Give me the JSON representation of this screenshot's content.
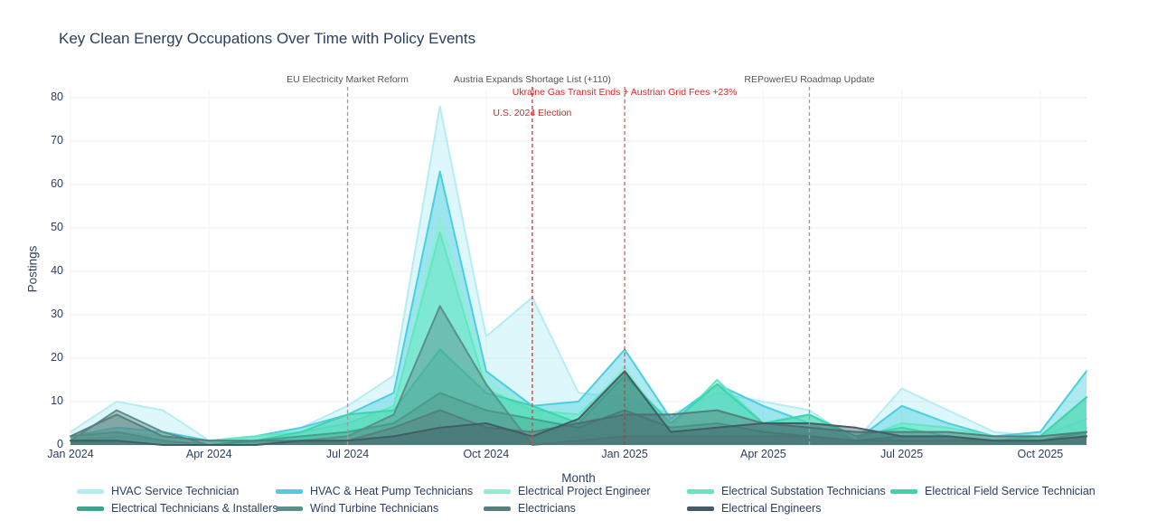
{
  "title": "Key Clean Energy Occupations Over Time with Policy Events",
  "chart_data": {
    "type": "area",
    "title": "Key Clean Energy Occupations Over Time with Policy Events",
    "xlabel": "Month",
    "ylabel": "Postings",
    "ylim": [
      0,
      80
    ],
    "yticks": [
      0,
      10,
      20,
      30,
      40,
      50,
      60,
      70,
      80
    ],
    "xticks": [
      "Jan 2024",
      "Apr 2024",
      "Jul 2024",
      "Oct 2024",
      "Jan 2025",
      "Apr 2025",
      "Jul 2025",
      "Oct 2025"
    ],
    "grid": true,
    "legend_position": "bottom",
    "x": [
      "Jan 2024",
      "Feb 2024",
      "Mar 2024",
      "Apr 2024",
      "May 2024",
      "Jun 2024",
      "Jul 2024",
      "Aug 2024",
      "Sep 2024",
      "Oct 2024",
      "Nov 2024",
      "Dec 2024",
      "Jan 2025",
      "Feb 2025",
      "Mar 2025",
      "Apr 2025",
      "May 2025",
      "Jun 2025",
      "Jul 2025",
      "Aug 2025",
      "Sep 2025",
      "Oct 2025",
      "Nov 2025"
    ],
    "series": [
      {
        "name": "HVAC Service Technician",
        "color": "#b5edf3",
        "values": [
          3,
          10,
          8,
          1,
          2,
          4,
          9,
          16,
          78,
          25,
          34,
          12,
          11,
          7,
          12,
          10,
          8,
          1,
          13,
          8,
          3,
          2,
          6
        ]
      },
      {
        "name": "HVAC & Heat Pump Technicians",
        "color": "#49cfe0",
        "values": [
          2,
          4,
          3,
          1,
          2,
          4,
          7,
          12,
          63,
          17,
          9,
          10,
          22,
          6,
          14,
          9,
          5,
          1,
          9,
          5,
          2,
          3,
          17
        ]
      },
      {
        "name": "Electrical Project Engineer",
        "color": "#8feed2",
        "values": [
          1,
          2,
          1,
          0,
          1,
          2,
          3,
          8,
          52,
          15,
          8,
          6,
          18,
          3,
          8,
          4,
          3,
          1,
          4,
          3,
          1,
          2,
          4
        ]
      },
      {
        "name": "Electrical Substation Technicians",
        "color": "#63e6c2",
        "values": [
          2,
          3,
          2,
          1,
          2,
          3,
          5,
          9,
          49,
          13,
          8,
          7,
          17,
          4,
          15,
          5,
          7,
          1,
          5,
          4,
          2,
          2,
          11
        ]
      },
      {
        "name": "Electrical Field Service Technician",
        "color": "#3fd3ab",
        "values": [
          1,
          2,
          1,
          0,
          1,
          3,
          7,
          8,
          22,
          12,
          9,
          5,
          16,
          5,
          14,
          5,
          7,
          2,
          4,
          2,
          1,
          2,
          11
        ]
      },
      {
        "name": "Electrical Technicians & Installers",
        "color": "#41a38b",
        "values": [
          2,
          3,
          1,
          0,
          1,
          2,
          3,
          5,
          12,
          8,
          6,
          4,
          8,
          4,
          5,
          3,
          2,
          1,
          2,
          2,
          1,
          1,
          3
        ]
      },
      {
        "name": "Wind Turbine Technicians",
        "color": "#5a8f8a",
        "values": [
          1,
          8,
          3,
          0,
          0,
          1,
          2,
          7,
          32,
          14,
          0,
          1,
          2,
          2,
          2,
          2,
          2,
          1,
          1,
          1,
          1,
          1,
          2
        ]
      },
      {
        "name": "Electricians",
        "color": "#567f7d",
        "values": [
          2,
          7,
          2,
          1,
          1,
          1,
          1,
          4,
          8,
          4,
          3,
          5,
          7,
          7,
          8,
          5,
          4,
          3,
          3,
          3,
          2,
          2,
          3
        ]
      },
      {
        "name": "Electrical Engineers",
        "color": "#435d66",
        "values": [
          1,
          1,
          0,
          0,
          0,
          1,
          1,
          2,
          4,
          5,
          2,
          6,
          17,
          3,
          4,
          5,
          5,
          4,
          2,
          2,
          1,
          1,
          2
        ]
      }
    ],
    "events": [
      {
        "label": "EU Electricity Market Reform",
        "x": "Jul 2024",
        "row": 0,
        "text_color": "#545454",
        "line_color": "#9c9c9c"
      },
      {
        "label": "Austria Expands Shortage List (+110)",
        "x": "Nov 2024",
        "row": 0,
        "text_color": "#545454",
        "line_color": "#9c9c9c"
      },
      {
        "label": "REPowerEU Roadmap Update",
        "x": "May 2025",
        "row": 0,
        "text_color": "#545454",
        "line_color": "#9c9c9c"
      },
      {
        "label": "Ukraine Gas Transit Ends + Austrian Grid Fees +23%",
        "x": "Jan 2025",
        "row": 1,
        "text_color": "#d62728",
        "line_color": "rgba(214,39,40,0.75)"
      },
      {
        "label": "U.S. 2024 Election",
        "x": "Nov 2024",
        "row": 2,
        "text_color": "#d62728",
        "line_color": "rgba(214,39,40,0.75)"
      }
    ]
  }
}
